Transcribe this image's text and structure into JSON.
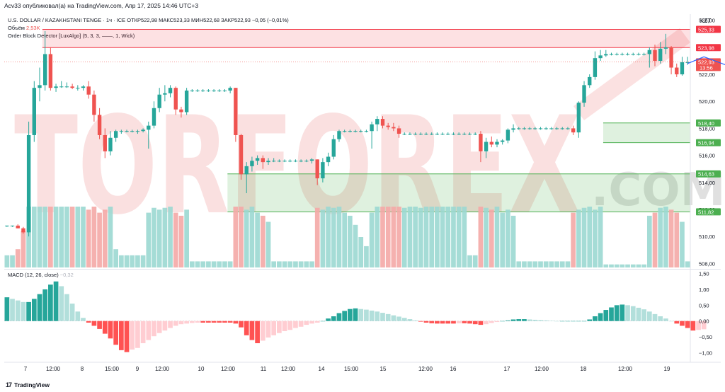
{
  "header": {
    "published": "Acv33 опубликовал(а) на TradingView.com, Апр 17, 2025 14:46 UTC+3",
    "symbol": "U.S. DOLLAR / KAZAKHSTANI TENGE · 1ч · ICE",
    "ohlc": "ОТКР522,98  МАКС523,33  МИН522,68  ЗАКР522,93  −0,05 (−0,01%)"
  },
  "legend": {
    "volume_label": "Объём",
    "volume_value": "2,53K",
    "indicator": "Order Block Detector [LuxAlgo] (5, 3, 3, ——, 1, Wick)",
    "macd_label": "MACD (12, 26, close)",
    "macd_value": "−0,32"
  },
  "currency": "KZT",
  "footer": {
    "brand": "TradingView"
  },
  "watermark": {
    "main": "TORFOREX",
    "suffix": ".COM"
  },
  "colors": {
    "up": "#26a69a",
    "down": "#ef5350",
    "vol_up": "#9bd8d1",
    "vol_down": "#f4a9a6",
    "bull_zone": "#4caf50",
    "bear_zone": "#f23645",
    "projection": "#2962ff"
  },
  "chart_data": {
    "type": "candlestick",
    "x_ticks": [
      "7",
      "12:00",
      "8",
      "15:00",
      "9",
      "12:00",
      "10",
      "12:00",
      "11",
      "12:00",
      "14",
      "15:00",
      "15",
      "12:00",
      "16",
      "17",
      "12:00",
      "18",
      "12:00",
      "19"
    ],
    "price_ticks": [
      "526,00",
      "524,00",
      "522,00",
      "520,00",
      "518,00",
      "516,00",
      "514,00",
      "512,00",
      "510,00",
      "508,00"
    ],
    "price_range": [
      507.7,
      526.3
    ],
    "macd_ticks": [
      "1,50",
      "1,00",
      "0,50",
      "0,00",
      "−0,50",
      "−1,00"
    ],
    "macd_range": [
      -1.28,
      1.58
    ],
    "price_labels": [
      {
        "text": "525,33",
        "type": "bear"
      },
      {
        "text": "523,98",
        "type": "bear"
      },
      {
        "text": "522,93",
        "sub": "13:56",
        "type": "last"
      },
      {
        "text": "518,40",
        "type": "bull"
      },
      {
        "text": "516,94",
        "type": "bull"
      },
      {
        "text": "514,63",
        "type": "bull"
      },
      {
        "text": "511,82",
        "type": "bull"
      }
    ],
    "order_blocks": [
      {
        "type": "bearish",
        "top": 525.33,
        "bottom": 523.98
      },
      {
        "type": "bullish",
        "top": 518.4,
        "bottom": 516.94
      },
      {
        "type": "bullish",
        "top": 514.63,
        "bottom": 511.82
      }
    ],
    "candles": [
      [
        510.8,
        510.8,
        510.7,
        510.8
      ],
      [
        510.8,
        510.8,
        510.7,
        510.8
      ],
      [
        510.8,
        510.9,
        510.6,
        510.6
      ],
      [
        510.6,
        510.7,
        510.2,
        510.3
      ],
      [
        510.3,
        518.5,
        510.0,
        517.5
      ],
      [
        517.5,
        521.5,
        517.0,
        521.0
      ],
      [
        521.0,
        522.5,
        520.0,
        521.2
      ],
      [
        521.2,
        525.2,
        520.8,
        523.5
      ],
      [
        523.5,
        524.0,
        520.8,
        521.0
      ],
      [
        521.0,
        521.3,
        520.7,
        521.1
      ],
      [
        521.1,
        521.5,
        521.0,
        521.1
      ],
      [
        521.1,
        521.4,
        521.0,
        521.1
      ],
      [
        521.1,
        521.3,
        520.9,
        521.0
      ],
      [
        521.0,
        521.2,
        520.8,
        521.0
      ],
      [
        521.0,
        521.2,
        520.8,
        521.1
      ],
      [
        521.1,
        521.5,
        520.2,
        520.5
      ],
      [
        520.5,
        520.8,
        518.5,
        519.0
      ],
      [
        519.0,
        519.5,
        517.2,
        517.5
      ],
      [
        517.5,
        518.0,
        515.8,
        516.3
      ],
      [
        516.3,
        517.8,
        516.0,
        517.3
      ],
      [
        517.3,
        517.9,
        517.0,
        517.8
      ],
      [
        517.8,
        517.9,
        517.6,
        517.8
      ],
      [
        517.8,
        517.9,
        517.7,
        517.8
      ],
      [
        517.8,
        517.9,
        517.7,
        517.8
      ],
      [
        517.8,
        517.9,
        517.6,
        517.8
      ],
      [
        517.8,
        518.0,
        517.7,
        517.9
      ],
      [
        517.9,
        518.5,
        516.5,
        518.2
      ],
      [
        518.2,
        520.0,
        518.0,
        519.5
      ],
      [
        519.5,
        521.0,
        519.2,
        520.5
      ],
      [
        520.5,
        521.2,
        520.0,
        520.6
      ],
      [
        520.6,
        521.2,
        520.3,
        521.0
      ],
      [
        521.0,
        521.1,
        519.0,
        519.4
      ],
      [
        519.4,
        519.6,
        518.8,
        519.2
      ],
      [
        519.2,
        521.0,
        519.0,
        520.8
      ],
      [
        520.8,
        520.9,
        520.7,
        520.8
      ],
      [
        520.8,
        520.9,
        520.7,
        520.8
      ],
      [
        520.8,
        520.9,
        520.7,
        520.8
      ],
      [
        520.8,
        520.9,
        520.7,
        520.8
      ],
      [
        520.8,
        520.9,
        520.7,
        520.8
      ],
      [
        520.8,
        520.9,
        520.7,
        520.8
      ],
      [
        520.8,
        520.9,
        520.7,
        520.8
      ],
      [
        520.8,
        521.1,
        520.6,
        521.0
      ],
      [
        521.0,
        521.0,
        517.0,
        517.5
      ],
      [
        517.5,
        517.6,
        514.2,
        514.6
      ],
      [
        514.6,
        515.5,
        513.2,
        515.2
      ],
      [
        515.2,
        515.9,
        514.8,
        515.6
      ],
      [
        515.6,
        516.0,
        515.3,
        515.8
      ],
      [
        515.8,
        516.0,
        515.0,
        515.5
      ],
      [
        515.5,
        515.8,
        515.3,
        515.6
      ],
      [
        515.6,
        515.8,
        515.5,
        515.6
      ],
      [
        515.6,
        515.7,
        515.5,
        515.6
      ],
      [
        515.6,
        515.7,
        515.5,
        515.6
      ],
      [
        515.6,
        515.7,
        515.5,
        515.6
      ],
      [
        515.6,
        515.7,
        515.5,
        515.6
      ],
      [
        515.6,
        515.7,
        515.5,
        515.6
      ],
      [
        515.6,
        515.7,
        515.5,
        515.6
      ],
      [
        515.6,
        515.8,
        515.4,
        515.7
      ],
      [
        515.7,
        515.7,
        513.8,
        514.3
      ],
      [
        514.3,
        515.8,
        514.0,
        515.5
      ],
      [
        515.5,
        516.2,
        515.2,
        515.9
      ],
      [
        515.9,
        517.5,
        515.7,
        517.2
      ],
      [
        517.2,
        517.9,
        517.0,
        517.8
      ],
      [
        517.8,
        517.9,
        517.7,
        517.8
      ],
      [
        517.8,
        517.9,
        517.7,
        517.8
      ],
      [
        517.8,
        517.9,
        517.7,
        517.8
      ],
      [
        517.8,
        517.9,
        517.7,
        517.8
      ],
      [
        517.8,
        517.9,
        517.7,
        517.8
      ],
      [
        517.8,
        518.5,
        516.5,
        518.3
      ],
      [
        518.3,
        518.9,
        517.8,
        518.7
      ],
      [
        518.7,
        518.9,
        518.0,
        518.2
      ],
      [
        518.2,
        518.4,
        517.9,
        518.1
      ],
      [
        518.1,
        518.4,
        517.8,
        518.0
      ],
      [
        518.0,
        518.2,
        517.3,
        517.6
      ],
      [
        517.6,
        517.7,
        517.5,
        517.6
      ],
      [
        517.6,
        517.7,
        517.5,
        517.6
      ],
      [
        517.6,
        517.7,
        517.5,
        517.6
      ],
      [
        517.6,
        517.7,
        517.5,
        517.6
      ],
      [
        517.6,
        517.7,
        517.5,
        517.6
      ],
      [
        517.6,
        517.7,
        517.5,
        517.6
      ],
      [
        517.6,
        517.7,
        517.5,
        517.6
      ],
      [
        517.6,
        517.7,
        517.5,
        517.6
      ],
      [
        517.6,
        517.7,
        517.5,
        517.6
      ],
      [
        517.6,
        517.7,
        517.5,
        517.6
      ],
      [
        517.6,
        517.7,
        517.5,
        517.6
      ],
      [
        517.6,
        517.7,
        517.5,
        517.6
      ],
      [
        517.6,
        517.7,
        517.5,
        517.6
      ],
      [
        517.6,
        517.7,
        517.5,
        517.6
      ],
      [
        517.6,
        517.8,
        515.5,
        516.3
      ],
      [
        516.3,
        517.3,
        515.8,
        517.0
      ],
      [
        517.0,
        517.4,
        516.6,
        516.8
      ],
      [
        516.8,
        517.2,
        516.6,
        517.0
      ],
      [
        517.0,
        517.2,
        516.8,
        517.1
      ],
      [
        517.1,
        518.0,
        516.9,
        517.9
      ],
      [
        517.9,
        518.3,
        517.7,
        518.0
      ],
      [
        518.0,
        518.1,
        517.9,
        518.0
      ],
      [
        518.0,
        518.1,
        517.9,
        518.0
      ],
      [
        518.0,
        518.1,
        517.9,
        518.0
      ],
      [
        518.0,
        518.1,
        517.9,
        518.0
      ],
      [
        518.0,
        518.1,
        517.9,
        518.0
      ],
      [
        518.0,
        518.1,
        517.9,
        518.0
      ],
      [
        518.0,
        518.1,
        517.9,
        518.0
      ],
      [
        518.0,
        518.1,
        517.9,
        518.0
      ],
      [
        518.0,
        518.1,
        517.9,
        518.0
      ],
      [
        518.0,
        518.1,
        517.9,
        518.0
      ],
      [
        518.0,
        518.2,
        517.5,
        517.7
      ],
      [
        517.7,
        520.0,
        517.3,
        519.9
      ],
      [
        519.9,
        521.5,
        519.6,
        521.2
      ],
      [
        521.2,
        522.0,
        521.0,
        521.8
      ],
      [
        521.8,
        523.7,
        521.6,
        523.2
      ],
      [
        523.2,
        523.8,
        523.0,
        523.4
      ],
      [
        523.4,
        523.8,
        523.3,
        523.5
      ],
      [
        523.5,
        523.6,
        523.4,
        523.5
      ],
      [
        523.5,
        523.6,
        523.4,
        523.5
      ],
      [
        523.5,
        523.6,
        523.4,
        523.5
      ],
      [
        523.5,
        523.6,
        523.4,
        523.5
      ],
      [
        523.5,
        523.6,
        523.4,
        523.5
      ],
      [
        523.5,
        523.6,
        523.4,
        523.5
      ],
      [
        523.5,
        523.6,
        523.4,
        523.5
      ],
      [
        523.5,
        524.0,
        522.5,
        523.8
      ],
      [
        523.8,
        524.2,
        522.6,
        523.0
      ],
      [
        523.0,
        524.4,
        522.8,
        523.9
      ],
      [
        523.9,
        525.0,
        523.5,
        524.0
      ],
      [
        524.0,
        524.1,
        522.0,
        522.5
      ],
      [
        522.5,
        522.8,
        521.8,
        522.0
      ],
      [
        522.0,
        523.3,
        521.9,
        522.9
      ],
      [
        522.9,
        523.3,
        522.7,
        522.9
      ]
    ],
    "volume": [
      0.2,
      0.2,
      0.3,
      0.6,
      1.0,
      1.0,
      1.0,
      1.0,
      1.0,
      1.0,
      1.0,
      1.0,
      1.0,
      1.0,
      1.0,
      0.95,
      1.0,
      0.9,
      0.95,
      1.0,
      0.3,
      0.2,
      0.2,
      0.2,
      0.2,
      0.2,
      0.9,
      0.98,
      0.95,
      0.98,
      1.0,
      0.9,
      0.85,
      0.95,
      0.1,
      0.1,
      0.1,
      0.1,
      0.1,
      0.1,
      0.1,
      0.1,
      1.0,
      1.0,
      0.95,
      1.0,
      0.9,
      0.85,
      0.75,
      0.1,
      0.1,
      0.1,
      0.1,
      0.1,
      0.1,
      0.1,
      0.1,
      0.98,
      0.95,
      1.0,
      0.98,
      1.0,
      0.9,
      0.85,
      0.7,
      0.5,
      0.35,
      0.9,
      1.0,
      1.0,
      1.0,
      1.0,
      1.0,
      0.98,
      1.0,
      1.0,
      0.98,
      1.0,
      1.0,
      1.0,
      1.0,
      1.0,
      1.0,
      1.0,
      1.0,
      0.2,
      0.2,
      1.0,
      0.98,
      0.95,
      1.0,
      0.9,
      0.95,
      0.85,
      0.1,
      0.1,
      0.1,
      0.1,
      0.1,
      0.1,
      0.1,
      0.1,
      0.1,
      0.1,
      0.9,
      0.95,
      0.98,
      1.0,
      0.95,
      1.0,
      0.05,
      0.05,
      0.05,
      0.05,
      0.05,
      0.05,
      0.05,
      0.05,
      0.85,
      0.9,
      0.98,
      1.0,
      0.95,
      0.9,
      0.75,
      0.1
    ],
    "macd_hist": [
      0.75,
      0.7,
      0.65,
      0.6,
      0.6,
      0.7,
      0.85,
      1.0,
      1.15,
      1.25,
      1.1,
      0.85,
      0.55,
      0.3,
      0.1,
      -0.05,
      -0.15,
      -0.25,
      -0.4,
      -0.55,
      -0.75,
      -0.92,
      -0.98,
      -0.9,
      -0.85,
      -0.7,
      -0.6,
      -0.48,
      -0.38,
      -0.3,
      -0.22,
      -0.15,
      -0.1,
      -0.08,
      -0.06,
      -0.05,
      -0.05,
      -0.05,
      -0.05,
      -0.05,
      -0.05,
      -0.05,
      -0.08,
      -0.2,
      -0.45,
      -0.6,
      -0.7,
      -0.62,
      -0.52,
      -0.45,
      -0.38,
      -0.32,
      -0.28,
      -0.22,
      -0.18,
      -0.12,
      -0.08,
      -0.05,
      0.0,
      0.08,
      0.15,
      0.25,
      0.32,
      0.38,
      0.4,
      0.38,
      0.36,
      0.33,
      0.3,
      0.26,
      0.22,
      0.18,
      0.14,
      0.1,
      0.06,
      0.02,
      -0.02,
      -0.05,
      -0.07,
      -0.08,
      -0.08,
      -0.08,
      -0.08,
      -0.07,
      -0.07,
      -0.08,
      -0.1,
      -0.12,
      -0.1,
      -0.06,
      -0.03,
      0.0,
      0.02,
      0.05,
      0.06,
      0.06,
      0.05,
      0.04,
      0.03,
      0.02,
      0.01,
      0.0,
      0.0,
      0.0,
      0.0,
      0.0,
      0.0,
      0.05,
      0.15,
      0.25,
      0.35,
      0.43,
      0.5,
      0.52,
      0.5,
      0.47,
      0.42,
      0.37,
      0.3,
      0.22,
      0.15,
      0.08,
      0.0,
      -0.08,
      -0.15,
      -0.22,
      -0.3,
      -0.28,
      -0.26
    ],
    "projection_path": [
      [
        522.8,
        0
      ],
      [
        523.3,
        3
      ],
      [
        522.4,
        9
      ],
      [
        521.6,
        13
      ],
      [
        522.6,
        17
      ],
      [
        521.8,
        24
      ],
      [
        523.2,
        31
      ]
    ]
  }
}
